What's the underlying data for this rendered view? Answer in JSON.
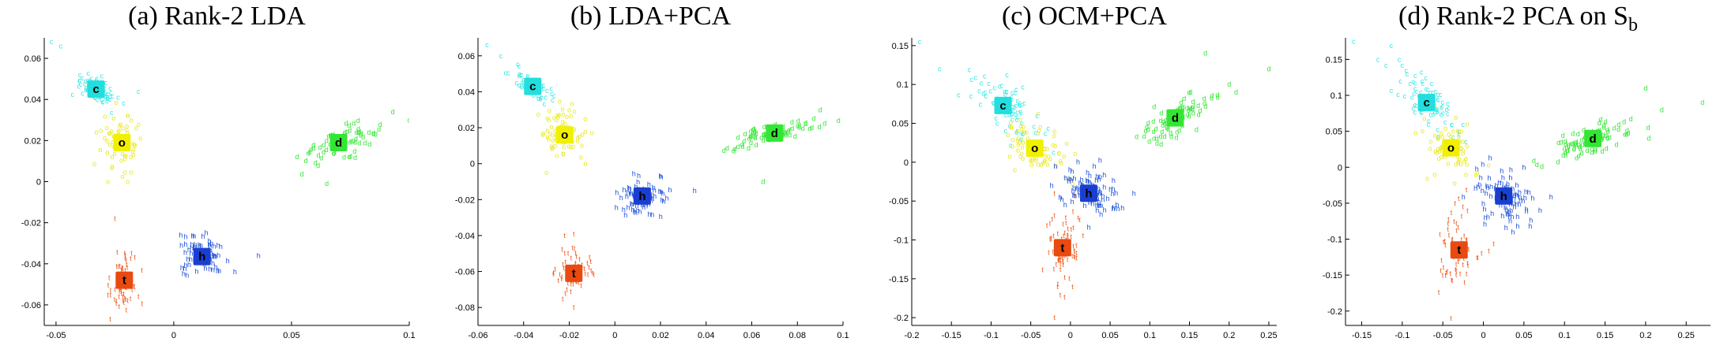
{
  "chart_data": [
    {
      "type": "scatter",
      "title": "(a) Rank-2 LDA",
      "title_sub": "",
      "xlim": [
        -0.055,
        0.1
      ],
      "ylim": [
        -0.07,
        0.07
      ],
      "xticks": [
        -0.05,
        0,
        0.05,
        0.1
      ],
      "xtick_labels": [
        "-0.05",
        "0",
        "0.05",
        "0.1"
      ],
      "yticks": [
        -0.06,
        -0.04,
        -0.02,
        0,
        0.02,
        0.04,
        0.06
      ],
      "ytick_labels": [
        "-0.06",
        "-0.04",
        "-0.02",
        "0",
        "0.02",
        "0.04",
        "0.06"
      ],
      "series": [
        {
          "symbol": "c",
          "color": "#33e6e6",
          "centroid_color": "#22dede",
          "centroid": [
            -0.033,
            0.045
          ],
          "spread": [
            0.005,
            0.0045
          ],
          "corr": -0.7,
          "n": 70,
          "outliers": [
            [
              -0.052,
              0.068
            ],
            [
              -0.048,
              0.066
            ],
            [
              -0.015,
              0.044
            ]
          ]
        },
        {
          "symbol": "o",
          "color": "#e8e81a",
          "centroid_color": "#f0f000",
          "centroid": [
            -0.022,
            0.019
          ],
          "spread": [
            0.0045,
            0.007
          ],
          "corr": -0.2,
          "n": 70,
          "outliers": [
            [
              -0.028,
              0.0
            ],
            [
              -0.018,
              0.03
            ]
          ]
        },
        {
          "symbol": "d",
          "color": "#33e633",
          "centroid_color": "#33e633",
          "centroid": [
            0.07,
            0.019
          ],
          "spread": [
            0.008,
            0.0045
          ],
          "corr": 0.7,
          "n": 70,
          "outliers": [
            [
              0.093,
              0.034
            ],
            [
              0.1,
              0.03
            ],
            [
              0.065,
              -0.001
            ]
          ]
        },
        {
          "symbol": "h",
          "color": "#1a4fd9",
          "centroid_color": "#1a3fd0",
          "centroid": [
            0.012,
            -0.0365
          ],
          "spread": [
            0.005,
            0.0045
          ],
          "corr": 0.0,
          "n": 70,
          "outliers": [
            [
              0.036,
              -0.036
            ],
            [
              0.026,
              -0.044
            ],
            [
              0.003,
              -0.026
            ]
          ]
        },
        {
          "symbol": "t",
          "color": "#f05a1a",
          "centroid_color": "#e84a10",
          "centroid": [
            -0.021,
            -0.048
          ],
          "spread": [
            0.004,
            0.0075
          ],
          "corr": 0.2,
          "n": 70,
          "outliers": [
            [
              -0.025,
              -0.018
            ],
            [
              -0.027,
              -0.067
            ]
          ]
        }
      ]
    },
    {
      "type": "scatter",
      "title": "(b) LDA+PCA",
      "title_sub": "",
      "xlim": [
        -0.06,
        0.1
      ],
      "ylim": [
        -0.09,
        0.07
      ],
      "xticks": [
        -0.06,
        -0.04,
        -0.02,
        0,
        0.02,
        0.04,
        0.06,
        0.08,
        0.1
      ],
      "xtick_labels": [
        "-0.06",
        "-0.04",
        "-0.02",
        "0",
        "0.02",
        "0.04",
        "0.06",
        "0.08",
        "0.1"
      ],
      "yticks": [
        -0.08,
        -0.06,
        -0.04,
        -0.02,
        0,
        0.02,
        0.04,
        0.06
      ],
      "ytick_labels": [
        "-0.08",
        "-0.06",
        "-0.04",
        "-0.02",
        "0",
        "0.02",
        "0.04",
        "0.06"
      ],
      "series": [
        {
          "symbol": "c",
          "color": "#33e6e6",
          "centroid_color": "#22dede",
          "centroid": [
            -0.036,
            0.043
          ],
          "spread": [
            0.005,
            0.005
          ],
          "corr": -0.7,
          "n": 70,
          "outliers": [
            [
              -0.056,
              0.066
            ],
            [
              -0.05,
              0.06
            ]
          ]
        },
        {
          "symbol": "o",
          "color": "#e8e81a",
          "centroid_color": "#f0f000",
          "centroid": [
            -0.022,
            0.016
          ],
          "spread": [
            0.005,
            0.007
          ],
          "corr": -0.2,
          "n": 70,
          "outliers": [
            [
              -0.03,
              -0.005
            ],
            [
              -0.02,
              0.03
            ]
          ]
        },
        {
          "symbol": "d",
          "color": "#33e633",
          "centroid_color": "#33e633",
          "centroid": [
            0.07,
            0.017
          ],
          "spread": [
            0.009,
            0.004
          ],
          "corr": 0.7,
          "n": 70,
          "outliers": [
            [
              0.09,
              0.03
            ],
            [
              0.098,
              0.024
            ],
            [
              0.052,
              0.007
            ],
            [
              0.065,
              -0.01
            ]
          ]
        },
        {
          "symbol": "h",
          "color": "#1a4fd9",
          "centroid_color": "#1a3fd0",
          "centroid": [
            0.012,
            -0.018
          ],
          "spread": [
            0.005,
            0.0055
          ],
          "corr": 0.0,
          "n": 70,
          "outliers": [
            [
              0.035,
              -0.015
            ],
            [
              0.02,
              -0.007
            ]
          ]
        },
        {
          "symbol": "t",
          "color": "#f05a1a",
          "centroid_color": "#e84a10",
          "centroid": [
            -0.018,
            -0.061
          ],
          "spread": [
            0.004,
            0.007
          ],
          "corr": 0.2,
          "n": 70,
          "outliers": [
            [
              -0.022,
              -0.04
            ],
            [
              -0.018,
              -0.08
            ]
          ]
        }
      ]
    },
    {
      "type": "scatter",
      "title": "(c) OCM+PCA",
      "title_sub": "",
      "xlim": [
        -0.2,
        0.26
      ],
      "ylim": [
        -0.21,
        0.16
      ],
      "xticks": [
        -0.2,
        -0.15,
        -0.1,
        -0.05,
        0,
        0.05,
        0.1,
        0.15,
        0.2,
        0.25
      ],
      "xtick_labels": [
        "-0.2",
        "-0.15",
        "-0.1",
        "-0.05",
        "0",
        "0.05",
        "0.1",
        "0.15",
        "0.2",
        "0.25"
      ],
      "yticks": [
        -0.2,
        -0.15,
        -0.1,
        -0.05,
        0,
        0.05,
        0.1,
        0.15
      ],
      "ytick_labels": [
        "-0.2",
        "-0.15",
        "-0.1",
        "-0.05",
        "0",
        "0.05",
        "0.1",
        "0.15"
      ],
      "series": [
        {
          "symbol": "c",
          "color": "#33e6e6",
          "centroid_color": "#22dede",
          "centroid": [
            -0.085,
            0.073
          ],
          "spread": [
            0.022,
            0.022
          ],
          "corr": -0.7,
          "n": 80,
          "outliers": [
            [
              -0.19,
              0.155
            ],
            [
              -0.165,
              0.12
            ]
          ]
        },
        {
          "symbol": "o",
          "color": "#e8e81a",
          "centroid_color": "#f0f000",
          "centroid": [
            -0.045,
            0.018
          ],
          "spread": [
            0.018,
            0.018
          ],
          "corr": -0.5,
          "n": 70,
          "outliers": [
            [
              -0.07,
              -0.01
            ],
            [
              -0.02,
              0.04
            ]
          ]
        },
        {
          "symbol": "d",
          "color": "#33e633",
          "centroid_color": "#33e633",
          "centroid": [
            0.132,
            0.057
          ],
          "spread": [
            0.026,
            0.018
          ],
          "corr": 0.7,
          "n": 80,
          "outliers": [
            [
              0.2,
              0.1
            ],
            [
              0.25,
              0.12
            ],
            [
              0.17,
              0.14
            ]
          ]
        },
        {
          "symbol": "h",
          "color": "#1a4fd9",
          "centroid_color": "#1a3fd0",
          "centroid": [
            0.023,
            -0.04
          ],
          "spread": [
            0.02,
            0.02
          ],
          "corr": -0.3,
          "n": 80,
          "outliers": [
            [
              0.06,
              -0.06
            ],
            [
              0.08,
              -0.04
            ]
          ]
        },
        {
          "symbol": "t",
          "color": "#f05a1a",
          "centroid_color": "#e84a10",
          "centroid": [
            -0.01,
            -0.11
          ],
          "spread": [
            0.012,
            0.03
          ],
          "corr": 0.2,
          "n": 80,
          "outliers": [
            [
              -0.02,
              -0.2
            ],
            [
              -0.02,
              -0.04
            ]
          ]
        }
      ]
    },
    {
      "type": "scatter",
      "title": "(d) Rank-2 PCA on S",
      "title_sub": "b",
      "xlim": [
        -0.17,
        0.28
      ],
      "ylim": [
        -0.22,
        0.18
      ],
      "xticks": [
        -0.15,
        -0.1,
        -0.05,
        0,
        0.05,
        0.1,
        0.15,
        0.2,
        0.25
      ],
      "xtick_labels": [
        "-0.15",
        "-0.1",
        "-0.05",
        "0",
        "0.05",
        "0.1",
        "0.15",
        "0.2",
        "0.25"
      ],
      "yticks": [
        -0.2,
        -0.15,
        -0.1,
        -0.05,
        0,
        0.05,
        0.1,
        0.15
      ],
      "ytick_labels": [
        "-0.2",
        "-0.15",
        "-0.1",
        "-0.05",
        "0",
        "0.05",
        "0.1",
        "0.15"
      ],
      "series": [
        {
          "symbol": "c",
          "color": "#33e6e6",
          "centroid_color": "#22dede",
          "centroid": [
            -0.07,
            0.09
          ],
          "spread": [
            0.022,
            0.025
          ],
          "corr": -0.7,
          "n": 80,
          "outliers": [
            [
              -0.16,
              0.175
            ],
            [
              -0.13,
              0.15
            ]
          ]
        },
        {
          "symbol": "o",
          "color": "#e8e81a",
          "centroid_color": "#f0f000",
          "centroid": [
            -0.04,
            0.027
          ],
          "spread": [
            0.016,
            0.02
          ],
          "corr": -0.4,
          "n": 70,
          "outliers": [
            [
              -0.06,
              -0.01
            ],
            [
              -0.02,
              0.06
            ]
          ]
        },
        {
          "symbol": "d",
          "color": "#33e633",
          "centroid_color": "#33e633",
          "centroid": [
            0.135,
            0.04
          ],
          "spread": [
            0.028,
            0.016
          ],
          "corr": 0.7,
          "n": 80,
          "outliers": [
            [
              0.22,
              0.08
            ],
            [
              0.27,
              0.09
            ],
            [
              0.2,
              0.11
            ]
          ]
        },
        {
          "symbol": "h",
          "color": "#1a4fd9",
          "centroid_color": "#1a3fd0",
          "centroid": [
            0.025,
            -0.04
          ],
          "spread": [
            0.02,
            0.022
          ],
          "corr": -0.3,
          "n": 80,
          "outliers": [
            [
              0.07,
              -0.06
            ],
            [
              0.05,
              0.0
            ]
          ]
        },
        {
          "symbol": "t",
          "color": "#f05a1a",
          "centroid_color": "#e84a10",
          "centroid": [
            -0.03,
            -0.115
          ],
          "spread": [
            0.012,
            0.028
          ],
          "corr": 0.2,
          "n": 80,
          "outliers": [
            [
              -0.04,
              -0.21
            ],
            [
              -0.035,
              -0.05
            ]
          ]
        }
      ]
    }
  ]
}
